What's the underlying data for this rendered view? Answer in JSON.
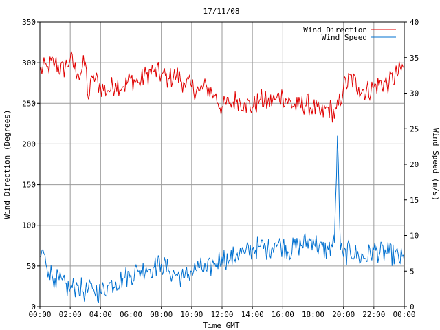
{
  "chart_data": {
    "type": "line",
    "title": "17/11/08",
    "xlabel": "Time GMT",
    "ylabel_left": "Wind Direction (Degrees)",
    "ylabel_right": "Wind Speed (m/s)",
    "x_ticks": [
      "00:00",
      "02:00",
      "04:00",
      "06:00",
      "08:00",
      "10:00",
      "12:00",
      "14:00",
      "16:00",
      "18:00",
      "20:00",
      "22:00",
      "00:00"
    ],
    "xlim_hours": [
      0,
      24
    ],
    "ylim_left": [
      0,
      350
    ],
    "y_ticks_left": [
      0,
      50,
      100,
      150,
      200,
      250,
      300,
      350
    ],
    "ylim_right": [
      0,
      40
    ],
    "y_ticks_right": [
      0,
      5,
      10,
      15,
      20,
      25,
      30,
      35,
      40
    ],
    "grid": true,
    "legend_position": "top-right",
    "series": [
      {
        "name": "Wind Direction",
        "axis": "left",
        "color": "#e00000",
        "x_hours": [
          0,
          0.5,
          1,
          1.5,
          2,
          2.5,
          3,
          3.2,
          3.5,
          4,
          4.5,
          5,
          5.5,
          6,
          6.5,
          7,
          7.5,
          8,
          8.5,
          9,
          9.5,
          10,
          10.5,
          11,
          11.5,
          12,
          12.5,
          13,
          13.5,
          14,
          14.5,
          15,
          15.5,
          16,
          16.5,
          17,
          17.5,
          18,
          18.5,
          19,
          19.5,
          20,
          20.5,
          21,
          21.5,
          22,
          22.5,
          23,
          23.5,
          24
        ],
        "values": [
          290,
          295,
          300,
          290,
          305,
          285,
          300,
          255,
          285,
          270,
          265,
          275,
          270,
          280,
          275,
          285,
          290,
          285,
          280,
          285,
          275,
          270,
          265,
          270,
          260,
          245,
          250,
          255,
          250,
          245,
          255,
          250,
          255,
          260,
          250,
          245,
          250,
          245,
          235,
          245,
          235,
          270,
          280,
          270,
          265,
          270,
          275,
          275,
          285,
          295
        ]
      },
      {
        "name": "Wind Speed",
        "axis": "right",
        "color": "#0070d0",
        "x_hours": [
          0,
          0.3,
          0.6,
          1,
          1.5,
          2,
          2.5,
          3,
          3.5,
          4,
          4.5,
          5,
          5.5,
          6,
          6.5,
          7,
          7.5,
          8,
          8.5,
          9,
          9.5,
          10,
          10.5,
          11,
          11.5,
          12,
          12.5,
          13,
          13.5,
          14,
          14.5,
          15,
          15.5,
          16,
          16.5,
          17,
          17.5,
          18,
          18.5,
          19,
          19.4,
          19.6,
          19.8,
          20,
          20.5,
          21,
          21.5,
          22,
          22.5,
          23,
          23.5,
          24
        ],
        "values": [
          7,
          7.5,
          5,
          4,
          3,
          2.5,
          3,
          2,
          2.5,
          2,
          3,
          3.5,
          4,
          4.5,
          5,
          5.5,
          5.5,
          6,
          5,
          4.5,
          4,
          5,
          5.5,
          5,
          6,
          7,
          6.5,
          7.5,
          7.5,
          8,
          8.5,
          8,
          9,
          8.5,
          8,
          8.5,
          9,
          9.5,
          8,
          8,
          9,
          24,
          8,
          7,
          8,
          7,
          7,
          8,
          7.5,
          7.5,
          7,
          6.5
        ]
      }
    ]
  }
}
